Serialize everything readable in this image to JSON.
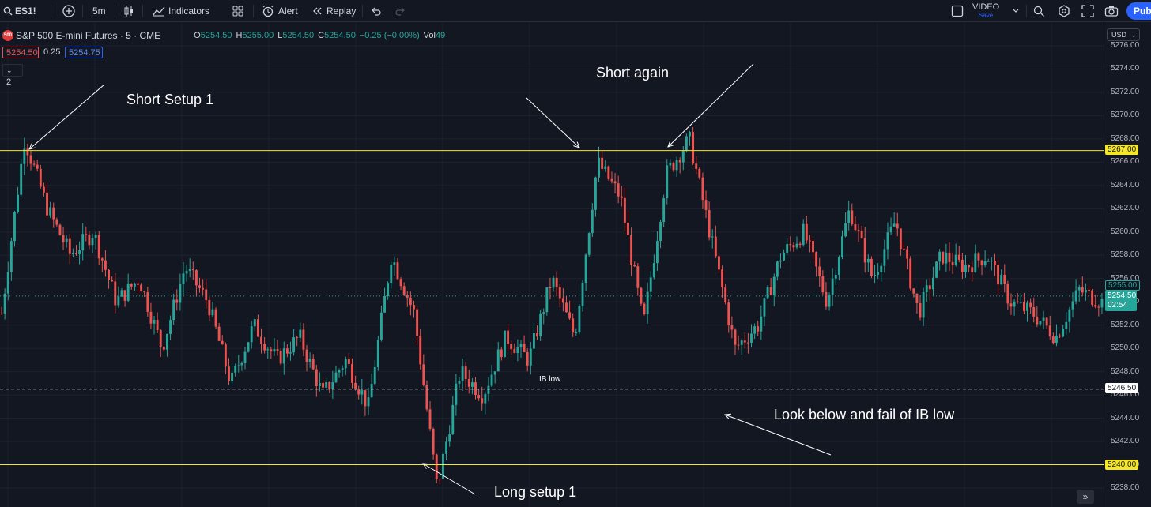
{
  "toolbar": {
    "symbol": "ES1!",
    "interval": "5m",
    "indicators_label": "Indicators",
    "alert_label": "Alert",
    "replay_label": "Replay",
    "video_label": "VIDEO",
    "save_label": "Save",
    "publish_label": "Publi"
  },
  "legend": {
    "title": "S&P 500 E-mini Futures · 5 · CME",
    "badge": "500",
    "o_label": "O",
    "o_value": "5254.50",
    "h_label": "H",
    "h_value": "5255.00",
    "l_label": "L",
    "l_value": "5254.50",
    "c_label": "C",
    "c_value": "5254.50",
    "change": "−0.25 (−0.00%)",
    "vol_label": "Vol",
    "vol_value": "49",
    "bid": "5254.50",
    "spread": "0.25",
    "ask": "5254.75",
    "collapse_count": "2"
  },
  "annotations": {
    "short_setup": "Short Setup 1",
    "short_again": "Short again",
    "ib_low": "IB low",
    "look_below": "Look below and fail of IB low",
    "long_setup": "Long setup 1"
  },
  "axis": {
    "currency": "USD",
    "ticks": [
      "5276.00",
      "5274.00",
      "5272.00",
      "5270.00",
      "5268.00",
      "5266.00",
      "5264.00",
      "5262.00",
      "5260.00",
      "5258.00",
      "5256.00",
      "5254.00",
      "5252.00",
      "5250.00",
      "5248.00",
      "5246.00",
      "5244.00",
      "5242.00",
      "5240.00",
      "5238.00"
    ],
    "label_5267": "5267.00",
    "label_5255": "5255.00",
    "label_last": "5254.50",
    "countdown": "02:54",
    "label_5246": "5246.50",
    "label_5240": "5240.00"
  },
  "colors": {
    "up": "#26a69a",
    "down": "#ef5350",
    "level": "#f5e727",
    "bg": "#131722",
    "accent": "#2962ff"
  },
  "chart_data": {
    "type": "candlestick",
    "interval": "5",
    "levels": [
      5267.0,
      5246.5,
      5240.0
    ],
    "last_price": 5254.5,
    "ohlc_pivots": [
      5253,
      5268,
      5262,
      5258,
      5260,
      5254,
      5256,
      5250,
      5257,
      5254,
      5247,
      5252,
      5249,
      5251,
      5246,
      5249,
      5245,
      5258,
      5253,
      5238,
      5248,
      5246,
      5251,
      5249,
      5256,
      5251,
      5266,
      5263,
      5252,
      5265,
      5268,
      5259,
      5250,
      5252,
      5258,
      5260,
      5254,
      5262,
      5256,
      5261,
      5253,
      5258,
      5257,
      5258,
      5254,
      5253,
      5251,
      5255,
      5254
    ]
  }
}
